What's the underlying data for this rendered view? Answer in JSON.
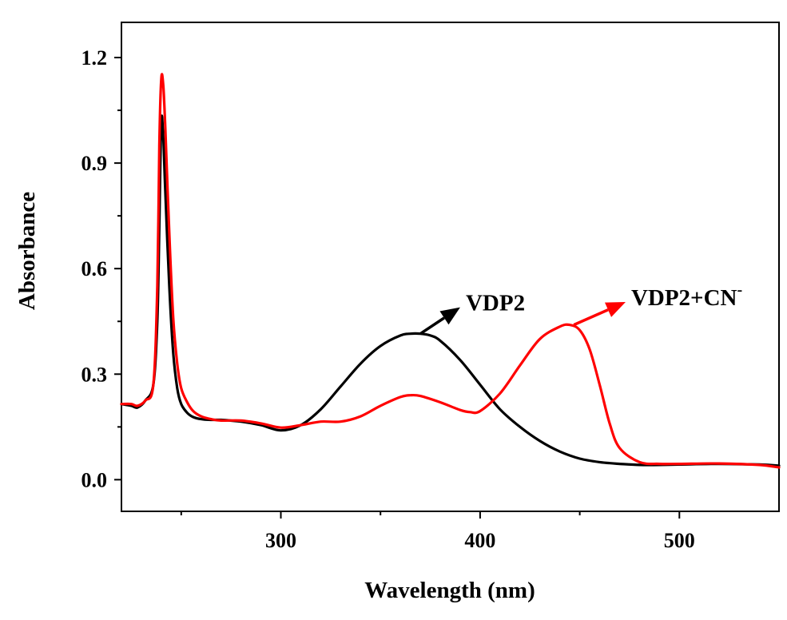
{
  "chart_data": {
    "type": "line",
    "xlabel": "Wavelength (nm)",
    "ylabel": "Absorbance",
    "xlim": [
      220,
      550
    ],
    "ylim": [
      -0.09,
      1.3
    ],
    "x_ticks": [
      300,
      400,
      500
    ],
    "x_tick_labels": [
      "300",
      "400",
      "500"
    ],
    "x_minor_ticks": [
      250,
      350,
      450
    ],
    "y_ticks": [
      0.0,
      0.3,
      0.6,
      0.9,
      1.2
    ],
    "y_tick_labels": [
      "0.0",
      "0.3",
      "0.6",
      "0.9",
      "1.2"
    ],
    "y_minor_ticks": [
      0.15,
      0.45,
      0.75,
      1.05
    ],
    "grid": false,
    "series": [
      {
        "name": "VDP2",
        "color": "#000000",
        "x": [
          220,
          225,
          228,
          232,
          236,
          238,
          239,
          240,
          241,
          242,
          244,
          246,
          248,
          250,
          253,
          256,
          260,
          265,
          270,
          280,
          290,
          300,
          310,
          320,
          330,
          340,
          350,
          360,
          365,
          370,
          375,
          380,
          390,
          400,
          410,
          420,
          430,
          440,
          450,
          460,
          470,
          480,
          490,
          500,
          520,
          540,
          550
        ],
        "y": [
          0.215,
          0.21,
          0.205,
          0.225,
          0.27,
          0.45,
          0.72,
          1.02,
          0.97,
          0.82,
          0.55,
          0.36,
          0.26,
          0.215,
          0.19,
          0.178,
          0.172,
          0.17,
          0.17,
          0.165,
          0.155,
          0.14,
          0.155,
          0.2,
          0.265,
          0.33,
          0.38,
          0.41,
          0.415,
          0.415,
          0.41,
          0.395,
          0.34,
          0.27,
          0.2,
          0.15,
          0.11,
          0.08,
          0.06,
          0.05,
          0.045,
          0.042,
          0.042,
          0.043,
          0.045,
          0.043,
          0.04
        ]
      },
      {
        "name": "VDP2+CN-",
        "color": "#ff0000",
        "x": [
          220,
          225,
          228,
          232,
          236,
          238,
          239,
          240,
          241,
          242,
          244,
          246,
          248,
          250,
          253,
          256,
          260,
          265,
          270,
          280,
          290,
          300,
          310,
          320,
          330,
          340,
          350,
          360,
          365,
          370,
          380,
          390,
          395,
          400,
          410,
          420,
          430,
          440,
          445,
          450,
          455,
          460,
          465,
          470,
          480,
          490,
          500,
          520,
          540,
          550
        ],
        "y": [
          0.215,
          0.215,
          0.21,
          0.225,
          0.27,
          0.55,
          0.95,
          1.14,
          1.12,
          1.0,
          0.7,
          0.46,
          0.33,
          0.26,
          0.22,
          0.195,
          0.18,
          0.172,
          0.168,
          0.168,
          0.16,
          0.148,
          0.155,
          0.165,
          0.165,
          0.18,
          0.21,
          0.235,
          0.24,
          0.238,
          0.22,
          0.198,
          0.192,
          0.195,
          0.245,
          0.325,
          0.4,
          0.435,
          0.44,
          0.425,
          0.37,
          0.27,
          0.16,
          0.09,
          0.05,
          0.045,
          0.045,
          0.046,
          0.042,
          0.035
        ]
      }
    ],
    "annotations": [
      {
        "label": "VDP2",
        "superscript": "",
        "arrow_from": [
          370,
          0.415
        ],
        "arrow_to": [
          390,
          0.49
        ],
        "color": "#000000"
      },
      {
        "label": "VDP2+CN",
        "superscript": "-",
        "arrow_from": [
          447,
          0.44
        ],
        "arrow_to": [
          473,
          0.505
        ],
        "color": "#ff0000"
      }
    ]
  }
}
